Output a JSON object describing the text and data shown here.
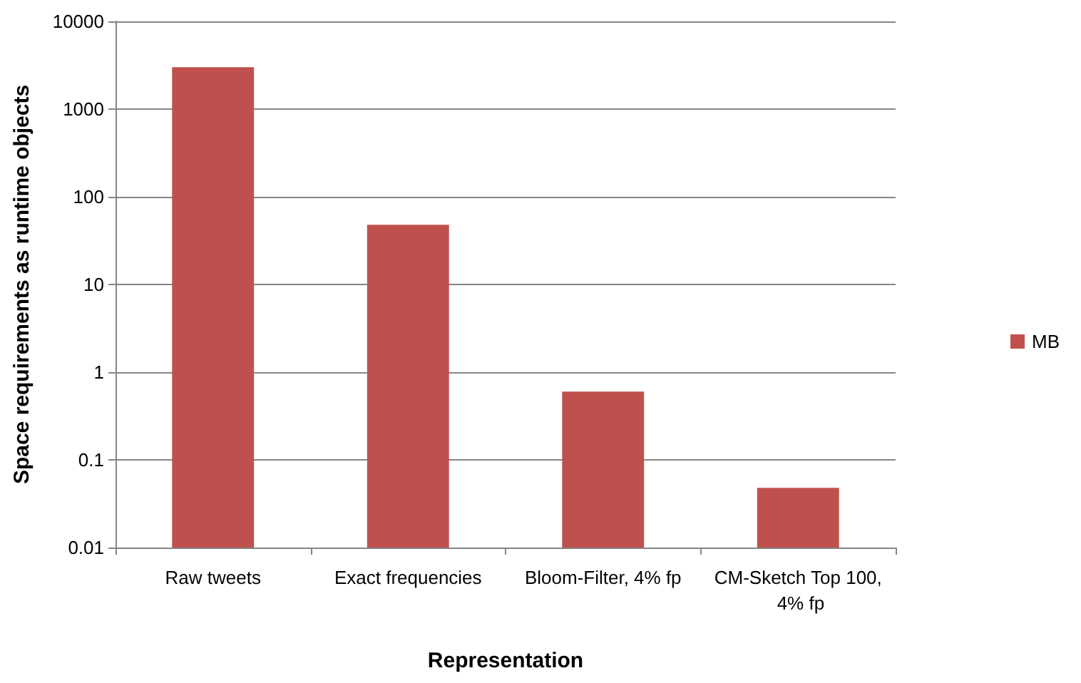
{
  "chart_data": {
    "type": "bar",
    "xlabel": "Representation",
    "ylabel": "Space requirements as runtime objects",
    "categories": [
      "Raw tweets",
      "Exact frequencies",
      "Bloom-Filter, 4% fp",
      "CM-Sketch Top 100, 4% fp"
    ],
    "series": [
      {
        "name": "MB",
        "color": "#c0504d",
        "values": [
          3000,
          48,
          0.6,
          0.048
        ]
      }
    ],
    "log": "y",
    "ylim": [
      0.01,
      10000
    ],
    "yticks": [
      0.01,
      0.1,
      1,
      10,
      100,
      1000,
      10000
    ],
    "grid": "y",
    "legend": "right"
  }
}
